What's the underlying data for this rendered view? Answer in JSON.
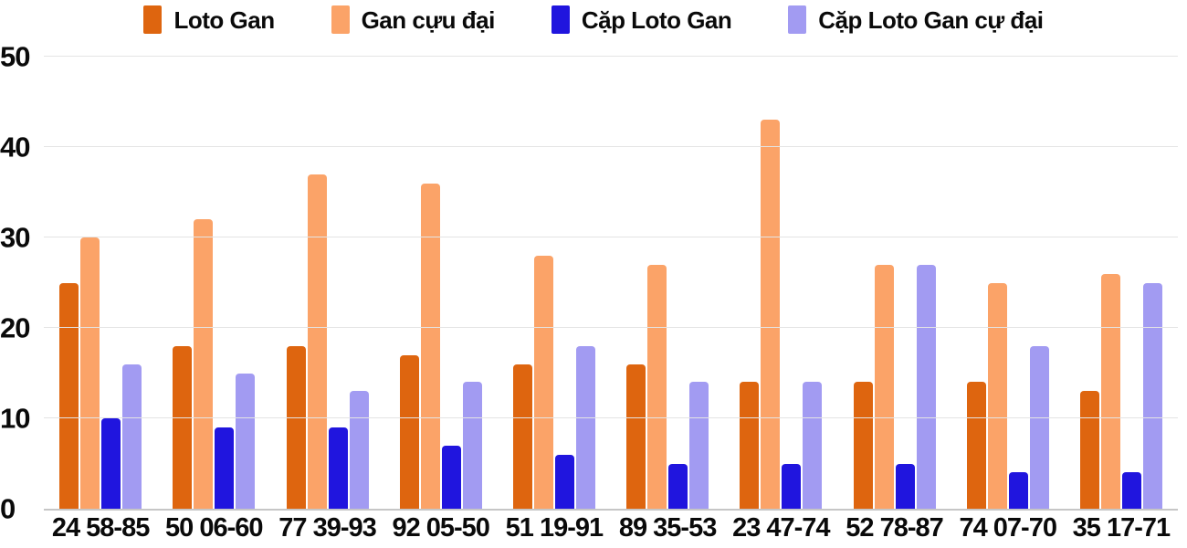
{
  "chart_data": {
    "type": "bar",
    "title": "",
    "xlabel": "",
    "ylabel": "",
    "categories": [
      "24 58-85",
      "50 06-60",
      "77 39-93",
      "92 05-50",
      "51 19-91",
      "89 35-53",
      "23 47-74",
      "52 78-87",
      "74 07-70",
      "35 17-71"
    ],
    "series": [
      {
        "name": "Loto Gan",
        "color": "#de650f",
        "values": [
          25,
          18,
          18,
          17,
          16,
          16,
          14,
          14,
          14,
          13
        ]
      },
      {
        "name": "Gan cựu đại",
        "color": "#fba368",
        "values": [
          30,
          32,
          37,
          36,
          28,
          27,
          43,
          27,
          25,
          26
        ]
      },
      {
        "name": "Cặp Loto Gan",
        "color": "#2015de",
        "values": [
          10,
          9,
          9,
          7,
          6,
          5,
          5,
          5,
          4,
          4
        ]
      },
      {
        "name": "Cặp Loto Gan cự đại",
        "color": "#a29bf2",
        "values": [
          16,
          15,
          13,
          14,
          18,
          14,
          14,
          27,
          18,
          25
        ]
      }
    ],
    "y_axis": {
      "min": 0,
      "max": 50,
      "ticks": [
        0,
        10,
        20,
        30,
        40,
        50
      ]
    },
    "grid": true,
    "legend_position": "top",
    "colors": {
      "gridline": "#e4e4e4",
      "axis_line": "#c6c6c6",
      "text": "#0a0a0a",
      "background": "#ffffff"
    }
  }
}
